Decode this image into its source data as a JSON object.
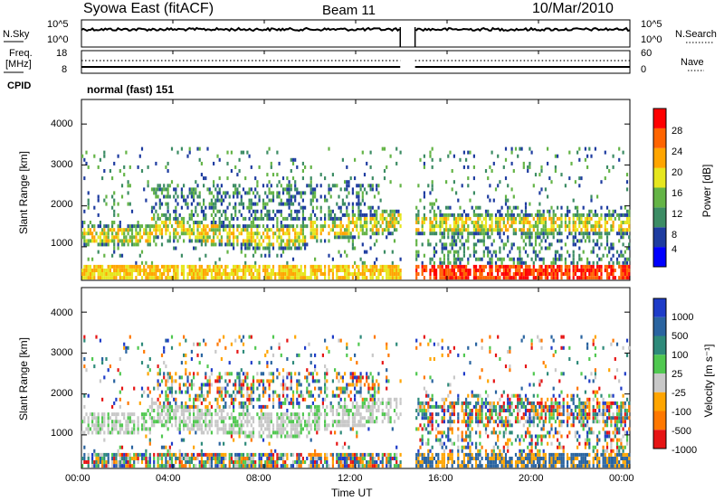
{
  "header": {
    "title": "Syowa East (fitACF)",
    "beam": "Beam 11",
    "date": "10/Mar/2010"
  },
  "top_panel": {
    "left_label": "N.Sky",
    "right_label": "N.Search",
    "left_ticks": [
      "10^5",
      "10^0"
    ],
    "right_ticks": [
      "10^5",
      "10^0"
    ]
  },
  "freq_panel": {
    "left_label_line1": "Freq.",
    "left_label_line2": "[MHz]",
    "right_label": "Nave",
    "left_ticks": [
      "18",
      "8"
    ],
    "right_ticks": [
      "60",
      "0"
    ]
  },
  "cpid": {
    "label": "CPID",
    "value": "normal (fast) 151"
  },
  "colors": {
    "power": [
      "#0000ff",
      "#1e3ca0",
      "#3c8c64",
      "#64b446",
      "#e6e61e",
      "#ffa500",
      "#ff6400",
      "#ff0000"
    ],
    "velocity": [
      "#1e3cc8",
      "#2a64a0",
      "#2e8a7a",
      "#50c850",
      "#c8c8c8",
      "#ffa500",
      "#ff7800",
      "#e61414"
    ]
  },
  "chart_data": [
    {
      "type": "heatmap",
      "name": "power",
      "ylabel": "Slant Range [km]",
      "y_ticks": [
        1000,
        2000,
        3000,
        4000
      ],
      "ylim": [
        180,
        4600
      ],
      "colorbar_label": "Power [dB]",
      "colorbar_ticks": [
        "4",
        "8",
        "12",
        "16",
        "20",
        "24",
        "28"
      ],
      "colorbar_range": [
        0,
        30
      ]
    },
    {
      "type": "heatmap",
      "name": "velocity",
      "ylabel": "Slant Range [km]",
      "y_ticks": [
        1000,
        2000,
        3000,
        4000
      ],
      "ylim": [
        180,
        4600
      ],
      "colorbar_label": "Velocity [m s⁻¹]",
      "colorbar_ticks": [
        "1000",
        "500",
        "100",
        "25",
        "-25",
        "-100",
        "-500",
        "-1000"
      ]
    }
  ],
  "x_axis": {
    "label": "Time UT",
    "ticks": [
      "00:00",
      "04:00",
      "08:00",
      "12:00",
      "16:00",
      "20:00",
      "00:00"
    ],
    "range_hours": [
      0,
      24
    ],
    "data_gap_hours": [
      13.95,
      14.6
    ]
  }
}
